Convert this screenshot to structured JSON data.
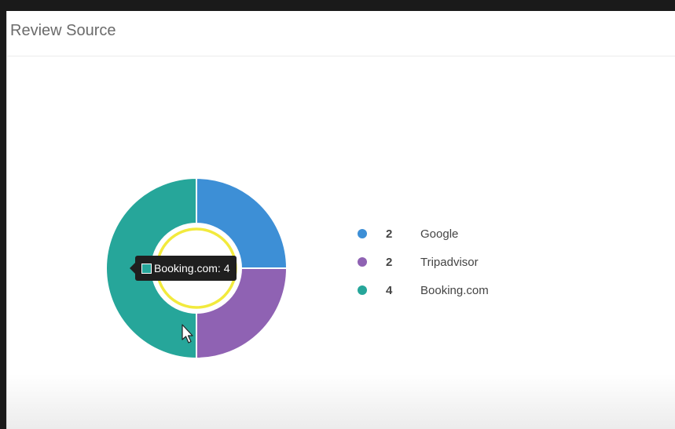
{
  "panel": {
    "title": "Review Source"
  },
  "chart_data": {
    "type": "pie",
    "categories": [
      "Google",
      "Tripadvisor",
      "Booking.com"
    ],
    "values": [
      2,
      2,
      4
    ],
    "colors": [
      "#3d8fd6",
      "#8f62b3",
      "#26a69a"
    ],
    "legend_position": "right"
  },
  "tooltip": {
    "label": "Booking.com: 4",
    "swatch_color": "#26a69a"
  },
  "cursor": {
    "icon": "mouse-pointer-icon",
    "highlight_color": "#f2ea3d"
  }
}
